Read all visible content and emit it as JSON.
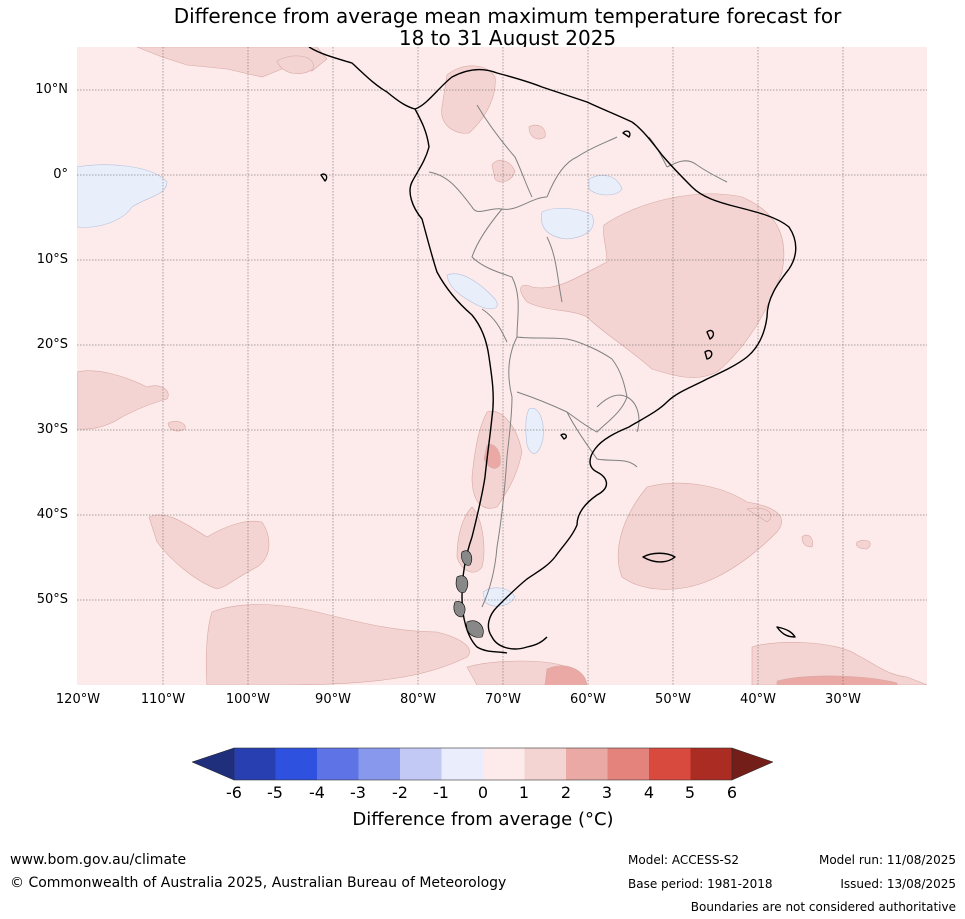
{
  "title": {
    "line1": "Difference from average mean maximum temperature forecast for",
    "line2": "18 to 31 August 2025"
  },
  "map": {
    "lat_labels": [
      "10°N",
      "0°",
      "10°S",
      "20°S",
      "30°S",
      "40°S",
      "50°S"
    ],
    "lon_labels": [
      "120°W",
      "110°W",
      "100°W",
      "90°W",
      "80°W",
      "70°W",
      "60°W",
      "50°W",
      "40°W",
      "30°W"
    ],
    "colors": {
      "background_0_to_1": "#fcebea",
      "band_1_to_2": "#f4d4d2",
      "band_2_to_3": "#eaa9a4",
      "band_minus1_to_0": "#e9eefb",
      "coast": "#000000",
      "border": "#808080"
    }
  },
  "colorbar": {
    "ticks": [
      "-6",
      "-5",
      "-4",
      "-3",
      "-2",
      "-1",
      "0",
      "1",
      "2",
      "3",
      "4",
      "5",
      "6"
    ],
    "colors": [
      "#202f7c",
      "#283fb1",
      "#2f51e0",
      "#5d73e6",
      "#8898ec",
      "#c1c9f4",
      "#eaedfb",
      "#fcebea",
      "#f4d4d2",
      "#eaa9a4",
      "#e4837c",
      "#d94a3e",
      "#aa2c22",
      "#731e19"
    ],
    "label": "Difference from average (°C)"
  },
  "footer": {
    "website": "www.bom.gov.au/climate",
    "copyright": "© Commonwealth of Australia 2025, Australian Bureau of Meteorology",
    "model": "Model: ACCESS-S2",
    "base_period": "Base period: 1981-2018",
    "model_run": "Model run: 11/08/2025",
    "issued": "Issued: 13/08/2025",
    "disclaimer": "Boundaries are not considered authoritative"
  }
}
